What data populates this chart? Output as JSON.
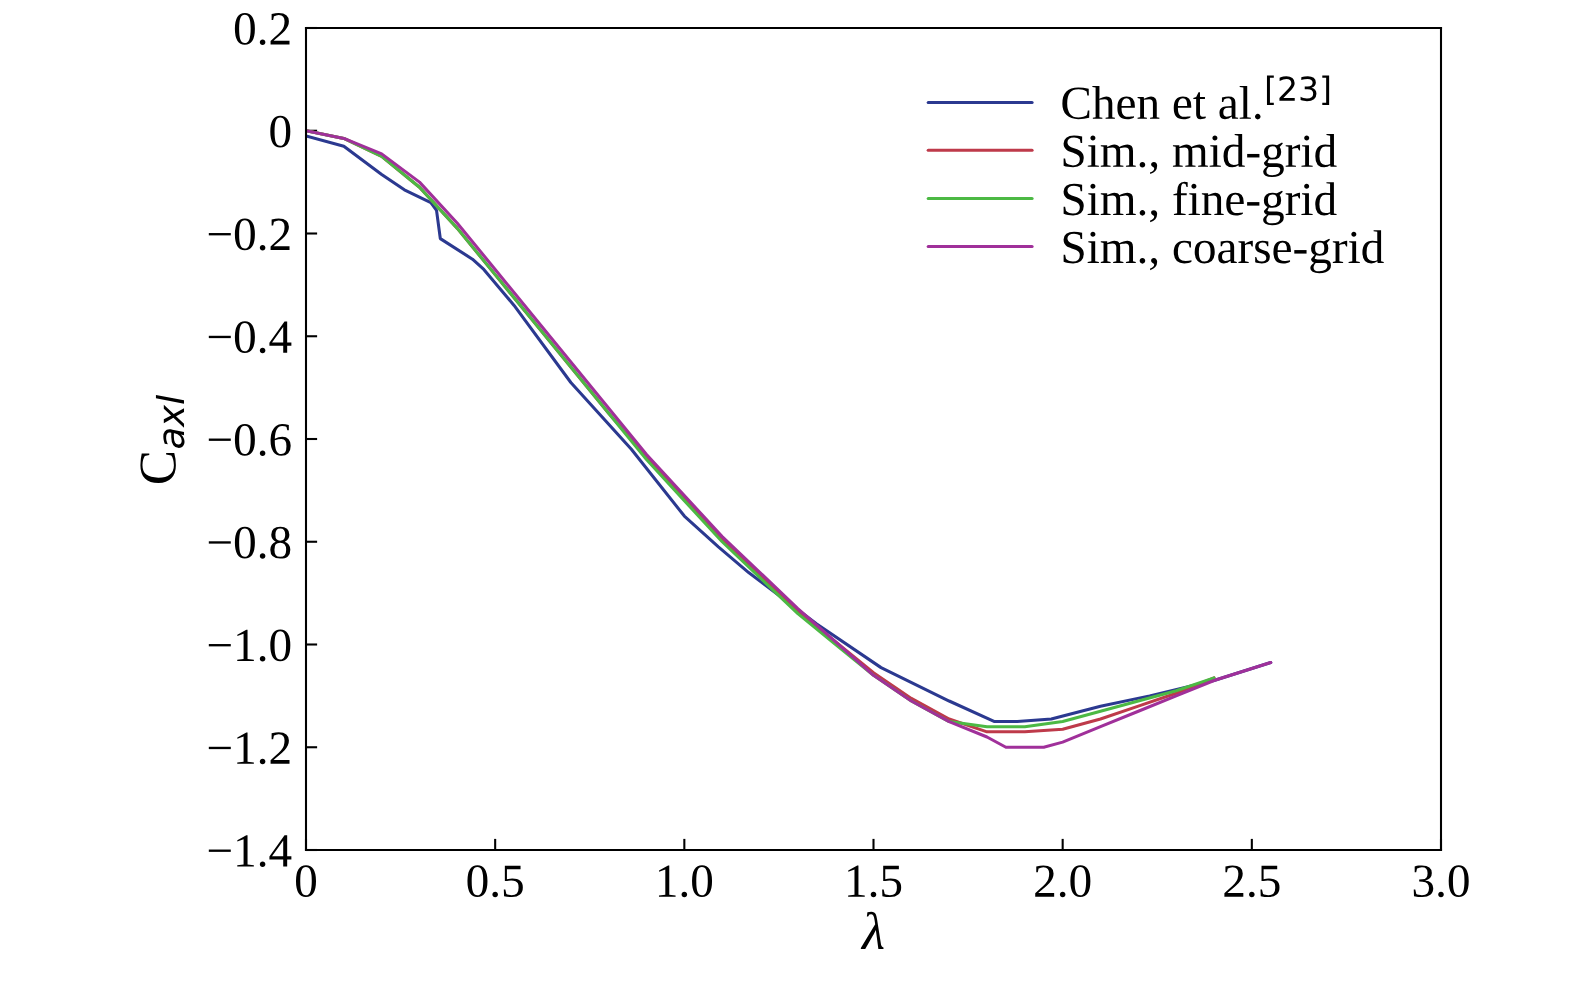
{
  "chart_data": {
    "type": "line",
    "xlabel": "λ",
    "ylabel": "C$_{axl}$",
    "xlim": [
      0,
      3.0
    ],
    "ylim": [
      -1.4,
      0.2
    ],
    "xticks": [
      0,
      0.5,
      {
        "value": 1.0,
        "label": "1.0"
      },
      1.5,
      {
        "value": 2.0,
        "label": "2.0"
      },
      2.5,
      {
        "value": 3.0,
        "label": "3.0"
      }
    ],
    "yticks": [
      {
        "value": -1.4,
        "label": "−1.4"
      },
      {
        "value": -1.2,
        "label": "−1.2"
      },
      {
        "value": -1.0,
        "label": "−1.0"
      },
      {
        "value": -0.8,
        "label": "−0.8"
      },
      {
        "value": -0.6,
        "label": "−0.6"
      },
      {
        "value": -0.4,
        "label": "−0.4"
      },
      {
        "value": -0.2,
        "label": "−0.2"
      },
      0,
      0.2
    ],
    "grid": false,
    "legend": "top right",
    "line_style": "solid",
    "marker": "none",
    "series": [
      {
        "name": "Chen et al.$^{[23]}$",
        "color": "#2b3990",
        "x": [
          0,
          0.1,
          0.2,
          0.26,
          0.33,
          0.345,
          0.355,
          0.44,
          0.47,
          0.55,
          0.7,
          0.86,
          1.0,
          1.09,
          1.17,
          1.35,
          1.52,
          1.7,
          1.82,
          1.88,
          1.97,
          2.1,
          2.23,
          2.4,
          2.55
        ],
        "values": [
          -0.01,
          -0.03,
          -0.085,
          -0.115,
          -0.14,
          -0.155,
          -0.21,
          -0.25,
          -0.27,
          -0.34,
          -0.49,
          -0.62,
          -0.75,
          -0.81,
          -0.86,
          -0.96,
          -1.045,
          -1.11,
          -1.15,
          -1.15,
          -1.145,
          -1.12,
          -1.1,
          -1.07,
          -1.035
        ]
      },
      {
        "name": "Sim., mid-grid",
        "color": "#be3a4a",
        "x": [
          0,
          0.1,
          0.2,
          0.3,
          0.4,
          0.5,
          0.6,
          0.7,
          0.8,
          0.9,
          1.0,
          1.1,
          1.2,
          1.3,
          1.4,
          1.5,
          1.6,
          1.7,
          1.8,
          1.9,
          2.0,
          2.1,
          2.2,
          2.3,
          2.4
        ],
        "values": [
          0,
          -0.015,
          -0.05,
          -0.11,
          -0.19,
          -0.28,
          -0.37,
          -0.46,
          -0.55,
          -0.635,
          -0.715,
          -0.795,
          -0.865,
          -0.935,
          -0.995,
          -1.055,
          -1.105,
          -1.145,
          -1.17,
          -1.17,
          -1.165,
          -1.145,
          -1.12,
          -1.095,
          -1.065
        ]
      },
      {
        "name": "Sim., fine-grid",
        "color": "#4cb944",
        "x": [
          0,
          0.1,
          0.2,
          0.3,
          0.4,
          0.5,
          0.6,
          0.7,
          0.8,
          0.9,
          1.0,
          1.1,
          1.2,
          1.3,
          1.4,
          1.5,
          1.6,
          1.7,
          1.8,
          1.9,
          2.0,
          2.1,
          2.2,
          2.3,
          2.4
        ],
        "values": [
          0,
          -0.015,
          -0.05,
          -0.11,
          -0.19,
          -0.28,
          -0.37,
          -0.46,
          -0.55,
          -0.64,
          -0.72,
          -0.8,
          -0.87,
          -0.94,
          -1.0,
          -1.06,
          -1.11,
          -1.15,
          -1.16,
          -1.16,
          -1.15,
          -1.13,
          -1.11,
          -1.09,
          -1.065
        ]
      },
      {
        "name": "Sim., coarse-grid",
        "color": "#a0309a",
        "x": [
          0,
          0.1,
          0.2,
          0.3,
          0.4,
          0.5,
          0.6,
          0.7,
          0.8,
          0.9,
          1.0,
          1.1,
          1.2,
          1.3,
          1.4,
          1.5,
          1.6,
          1.7,
          1.8,
          1.85,
          1.95,
          2.0,
          2.1,
          2.2,
          2.3,
          2.4,
          2.55
        ],
        "values": [
          0,
          -0.015,
          -0.045,
          -0.1,
          -0.18,
          -0.27,
          -0.36,
          -0.45,
          -0.54,
          -0.63,
          -0.71,
          -0.79,
          -0.86,
          -0.93,
          -0.995,
          -1.06,
          -1.11,
          -1.15,
          -1.18,
          -1.2,
          -1.2,
          -1.19,
          -1.16,
          -1.13,
          -1.1,
          -1.07,
          -1.035
        ]
      }
    ]
  }
}
